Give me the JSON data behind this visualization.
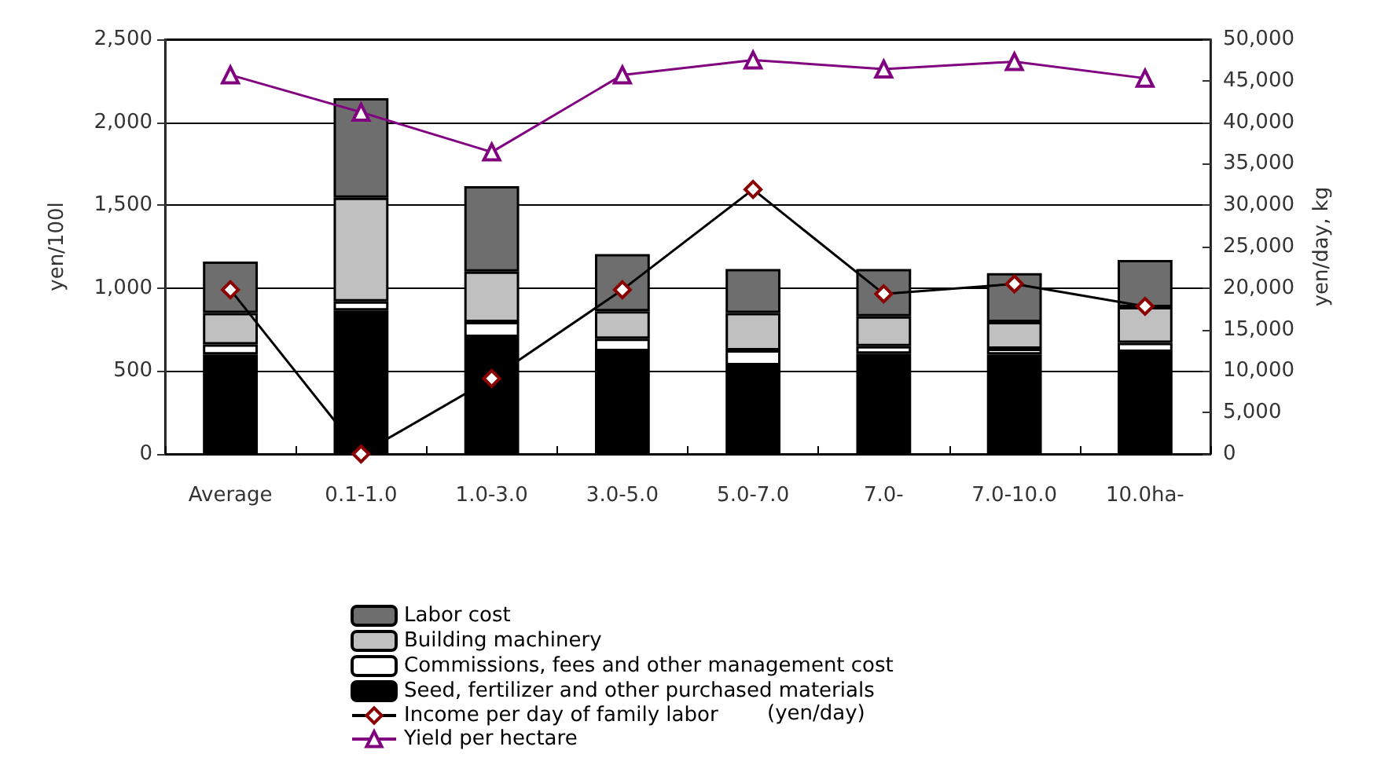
{
  "chart_data": {
    "type": "bar",
    "stacked": true,
    "categories": [
      "Average",
      "0.1-1.0",
      "1.0-3.0",
      "3.0-5.0",
      "5.0-7.0",
      "7.0-",
      "7.0-10.0",
      "10.0ha-"
    ],
    "ylabel": "yen/100l",
    "y2label": "yen/day, kg",
    "ylim": [
      0,
      2500
    ],
    "yticks": [
      {
        "value": 0,
        "label": "0"
      },
      {
        "value": 500,
        "label": "500"
      },
      {
        "value": 1000,
        "label": "1,000"
      },
      {
        "value": 1500,
        "label": "1,500"
      },
      {
        "value": 2000,
        "label": "2,000"
      },
      {
        "value": 2500,
        "label": "2,500"
      }
    ],
    "y2lim": [
      0,
      50000
    ],
    "y2ticks": [
      {
        "value": 0,
        "label": "0"
      },
      {
        "value": 5000,
        "label": "5,000"
      },
      {
        "value": 10000,
        "label": "10,000"
      },
      {
        "value": 15000,
        "label": "15,000"
      },
      {
        "value": 20000,
        "label": "20,000"
      },
      {
        "value": 25000,
        "label": "25,000"
      },
      {
        "value": 30000,
        "label": "30,000"
      },
      {
        "value": 35000,
        "label": "35,000"
      },
      {
        "value": 40000,
        "label": "40,000"
      },
      {
        "value": 45000,
        "label": "45,000"
      },
      {
        "value": 50000,
        "label": "50,000"
      }
    ],
    "grid": "y",
    "legend": "bottom",
    "annotations": [
      "(yen/day)"
    ],
    "series": [
      {
        "name": "Seed, fertilizer and other purchased materials",
        "color": "#000000",
        "values": [
          600,
          865,
          705,
          620,
          535,
          605,
          600,
          615
        ]
      },
      {
        "name": "Commissions, fees and other management cost",
        "color": "#ffffff",
        "values": [
          60,
          55,
          90,
          75,
          90,
          45,
          35,
          55
        ]
      },
      {
        "name": "Building machinery",
        "color": "#c0c0c0",
        "values": [
          190,
          625,
          305,
          165,
          225,
          180,
          160,
          215
        ]
      },
      {
        "name": "Labor cost",
        "color": "#6e6e6e",
        "values": [
          310,
          600,
          515,
          345,
          265,
          285,
          295,
          285
        ]
      },
      {
        "name": "Income per day of family labor",
        "type": "line",
        "axis": "y2",
        "color": "#000000",
        "marker": "diamond",
        "values": [
          19800,
          0,
          9100,
          19800,
          31900,
          19300,
          20500,
          17800
        ]
      },
      {
        "name": "Yield per hectare",
        "type": "line",
        "axis": "y2",
        "color": "#800080",
        "marker": "triangle",
        "values": [
          45700,
          41200,
          36400,
          45700,
          47500,
          46400,
          47300,
          45300
        ]
      }
    ]
  }
}
